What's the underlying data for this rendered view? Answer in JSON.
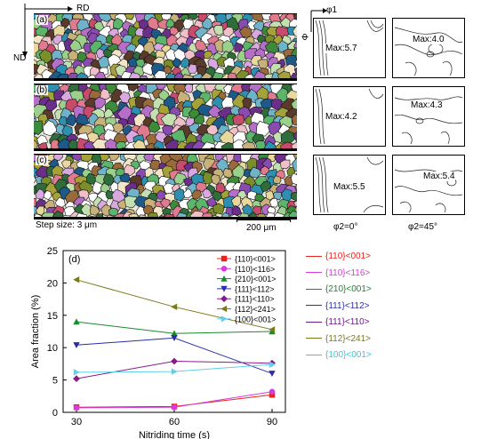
{
  "micrographs": {
    "axis_rd": "RD",
    "axis_nd": "ND",
    "panels": [
      {
        "label": "(a)"
      },
      {
        "label": "(b)"
      },
      {
        "label": "(c)"
      }
    ],
    "step_size": "Step size: 3 μm",
    "scale_bar": "200 μm"
  },
  "odf": {
    "axis_phi1": "φ1",
    "axis_phi": "Φ",
    "rows": [
      {
        "left_max": "Max:5.7",
        "right_max": "Max:4.0"
      },
      {
        "left_max": "Max:4.2",
        "right_max": "Max:4.3"
      },
      {
        "left_max": "Max:5.5",
        "right_max": "Max:5.4"
      }
    ],
    "col_left": "φ2=0°",
    "col_right": "φ2=45°"
  },
  "fiber_legend": [
    {
      "label": "{110}<001>",
      "color": "#e8231c"
    },
    {
      "label": "{110}<116>",
      "color": "#d93adb"
    },
    {
      "label": "{210}<001>",
      "color": "#1a8a2e"
    },
    {
      "label": "{111}<112>",
      "color": "#2a2fa8"
    },
    {
      "label": "{111}<110>",
      "color": "#6b1a8c"
    },
    {
      "label": "{112}<241>",
      "color": "#7a7a1c"
    },
    {
      "label": "{100}<001>",
      "color": "#2ec9e0"
    }
  ],
  "chart_data": {
    "type": "line",
    "panel_label": "(d)",
    "xlabel": "Nitriding time (s)",
    "ylabel": "Area fraction (%)",
    "x": [
      30,
      60,
      90
    ],
    "xlim": [
      30,
      90
    ],
    "ylim": [
      0,
      25
    ],
    "xticks": [
      "30",
      "60",
      "90"
    ],
    "yticks": [
      "0",
      "5",
      "10",
      "15",
      "20",
      "25"
    ],
    "series": [
      {
        "name": "{110}<001>",
        "color": "#e8231c",
        "marker": "square",
        "values": [
          0.8,
          0.9,
          2.7
        ]
      },
      {
        "name": "{110}<116>",
        "color": "#d93adb",
        "marker": "circle",
        "values": [
          0.7,
          0.8,
          3.2
        ]
      },
      {
        "name": "{210}<001>",
        "color": "#1a8a2e",
        "marker": "triangle",
        "values": [
          14.0,
          12.2,
          12.5
        ]
      },
      {
        "name": "{111}<112>",
        "color": "#2a2fa8",
        "marker": "tri-down",
        "values": [
          10.4,
          11.5,
          6.0
        ]
      },
      {
        "name": "{111}<110>",
        "color": "#8a1a8c",
        "marker": "diamond",
        "values": [
          5.2,
          7.9,
          7.6
        ]
      },
      {
        "name": "{112}<241>",
        "color": "#7a7a1c",
        "marker": "tri-left",
        "values": [
          20.5,
          16.3,
          12.8
        ]
      },
      {
        "name": "{100}<001>",
        "color": "#5fd0e8",
        "marker": "tri-right",
        "values": [
          6.2,
          6.3,
          7.4
        ]
      }
    ]
  }
}
